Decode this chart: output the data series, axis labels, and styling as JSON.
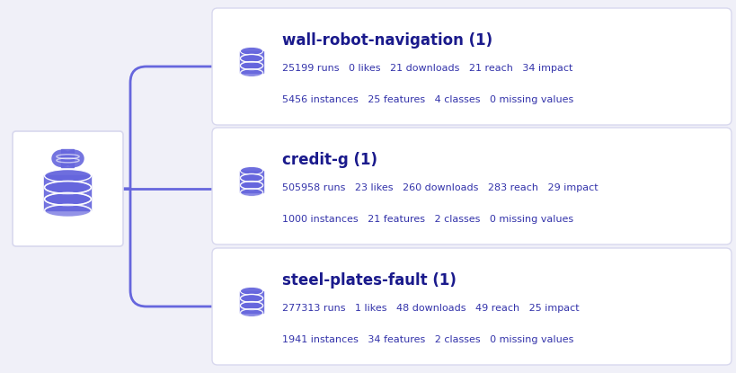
{
  "bg_color": "#f0f0f8",
  "card_bg": "#ffffff",
  "card_border": "#d8d8ee",
  "accent_color": "#6666dd",
  "line_color": "#6666dd",
  "text_color": "#3333aa",
  "title_color": "#1a1a8c",
  "datasets": [
    {
      "name": "wall-robot-navigation (1)",
      "line1": "25199 runs   0 likes   21 downloads   21 reach   34 impact",
      "line2": "5456 instances   25 features   4 classes   0 missing values"
    },
    {
      "name": "credit-g (1)",
      "line1": "505958 runs   23 likes   260 downloads   283 reach   29 impact",
      "line2": "1000 instances   21 features   2 classes   0 missing values"
    },
    {
      "name": "steel-plates-fault (1)",
      "line1": "277313 runs   1 likes   48 downloads   49 reach   25 impact",
      "line2": "1941 instances   34 features   2 classes   0 missing values"
    }
  ]
}
